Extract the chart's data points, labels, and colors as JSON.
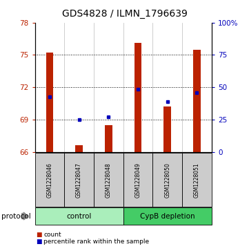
{
  "title": "GDS4828 / ILMN_1796639",
  "samples": [
    "GSM1228046",
    "GSM1228047",
    "GSM1228048",
    "GSM1228049",
    "GSM1228050",
    "GSM1228051"
  ],
  "red_values": [
    75.2,
    66.6,
    68.5,
    76.1,
    70.2,
    75.5
  ],
  "blue_values": [
    71.1,
    69.0,
    69.25,
    71.8,
    70.65,
    71.5
  ],
  "ylim": [
    66,
    78
  ],
  "yticks": [
    66,
    69,
    72,
    75,
    78
  ],
  "right_ytick_vals": [
    0,
    25,
    50,
    75,
    100
  ],
  "bar_color": "#bb2200",
  "blue_color": "#0000bb",
  "sample_box_color": "#cccccc",
  "control_color": "#aaeebb",
  "depletion_color": "#44cc66",
  "title_fontsize": 10,
  "bar_width": 0.25,
  "groups": [
    {
      "label": "control",
      "start": 0,
      "end": 3,
      "color": "#aaeebb"
    },
    {
      "label": "CypB depletion",
      "start": 3,
      "end": 6,
      "color": "#44cc66"
    }
  ],
  "legend_count": "count",
  "legend_pct": "percentile rank within the sample"
}
